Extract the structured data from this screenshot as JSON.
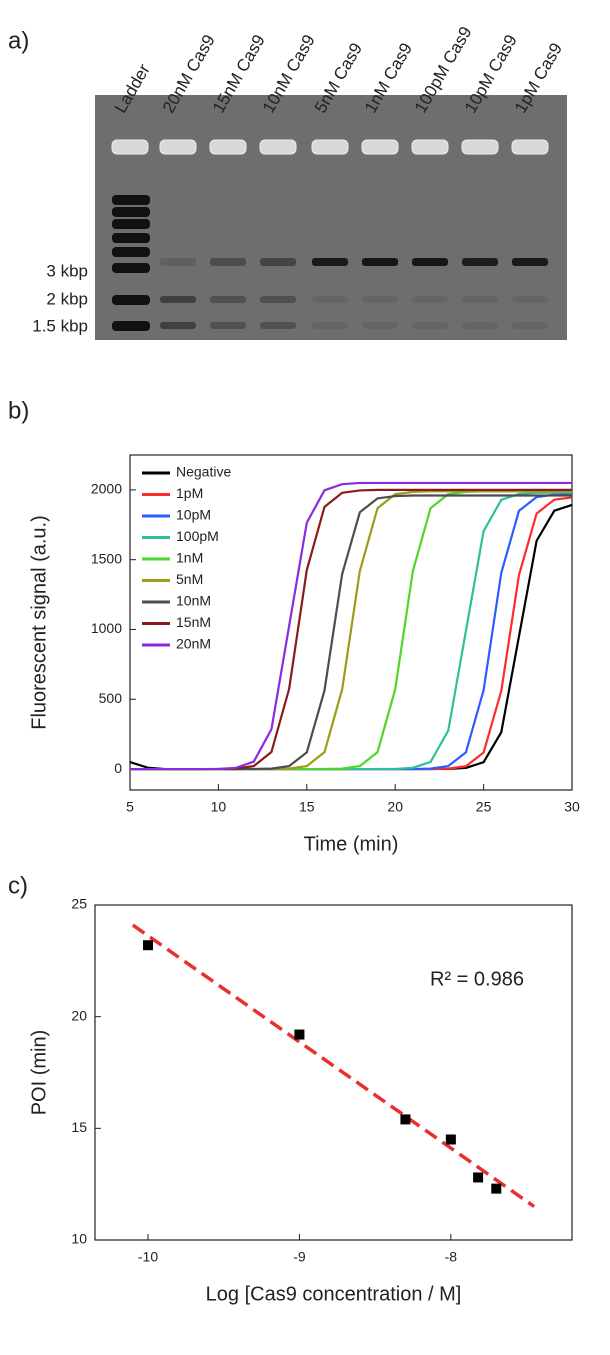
{
  "gel": {
    "panel_label": "a)",
    "lanes": [
      "Ladder",
      "20nM Cas9",
      "15nM Cas9",
      "10nM Cas9",
      "5nM Cas9",
      "1nM Cas9",
      "100pM Cas9",
      "10pM Cas9",
      "1pM Cas9"
    ],
    "size_markers": [
      "3 kbp",
      "2 kbp",
      "1.5 kbp"
    ]
  },
  "chart_data": [
    {
      "type": "line",
      "panel_label": "b)",
      "xlabel": "Time (min)",
      "ylabel": "Fluorescent signal (a.u.)",
      "xlim": [
        5,
        30
      ],
      "xticks": [
        5,
        10,
        15,
        20,
        25,
        30
      ],
      "ylim": [
        -150,
        2250
      ],
      "yticks": [
        0,
        500,
        1000,
        1500,
        2000
      ],
      "legend": "upper left",
      "x": [
        5,
        6,
        7,
        8,
        9,
        10,
        11,
        12,
        13,
        14,
        15,
        16,
        17,
        18,
        19,
        20,
        21,
        22,
        23,
        24,
        25,
        26,
        27,
        28,
        29,
        30
      ],
      "series": [
        {
          "name": "Negative",
          "color": "#000000",
          "values": [
            50,
            10,
            0,
            0,
            0,
            0,
            0,
            0,
            0,
            0,
            0,
            0,
            0,
            0,
            0,
            0,
            0,
            0,
            1,
            8,
            49,
            264,
            950,
            1636,
            1851,
            1892
          ]
        },
        {
          "name": "1pM",
          "color": "#ff2b2b",
          "values": [
            0,
            0,
            0,
            0,
            0,
            0,
            0,
            0,
            0,
            0,
            0,
            0,
            0,
            0,
            0,
            0,
            0,
            0,
            3,
            20,
            119,
            560,
            1390,
            1831,
            1930,
            1946
          ]
        },
        {
          "name": "10pM",
          "color": "#2b5cff",
          "values": [
            0,
            0,
            0,
            0,
            0,
            0,
            0,
            0,
            0,
            0,
            0,
            0,
            0,
            0,
            0,
            0,
            0,
            3,
            21,
            120,
            565,
            1405,
            1850,
            1949,
            1966,
            1970
          ]
        },
        {
          "name": "100pM",
          "color": "#2fbf9c",
          "values": [
            0,
            0,
            0,
            0,
            0,
            0,
            0,
            0,
            0,
            0,
            0,
            0,
            0,
            0,
            0,
            1,
            9,
            51,
            275,
            990,
            1705,
            1929,
            1971,
            1979,
            1980,
            1980
          ]
        },
        {
          "name": "1nM",
          "color": "#4fd62a",
          "values": [
            0,
            0,
            0,
            0,
            0,
            0,
            0,
            0,
            0,
            0,
            0,
            1,
            3,
            21,
            121,
            571,
            1419,
            1869,
            1969,
            1986,
            1990,
            1990,
            1990,
            1990,
            1990,
            1990
          ]
        },
        {
          "name": "5nM",
          "color": "#9c9c1a",
          "values": [
            0,
            0,
            0,
            0,
            0,
            0,
            0,
            0,
            1,
            3,
            21,
            121,
            571,
            1419,
            1869,
            1969,
            1986,
            1990,
            1990,
            1990,
            1990,
            1990,
            1990,
            1990,
            1990,
            1990
          ]
        },
        {
          "name": "10nM",
          "color": "#4d4d4d",
          "values": [
            0,
            0,
            0,
            0,
            0,
            0,
            0,
            1,
            3,
            21,
            120,
            563,
            1397,
            1840,
            1939,
            1956,
            1960,
            1960,
            1960,
            1960,
            1960,
            1960,
            1960,
            1960,
            1960,
            1960
          ]
        },
        {
          "name": "15nM",
          "color": "#8b1a1a",
          "values": [
            0,
            0,
            0,
            0,
            0,
            1,
            3,
            21,
            122,
            574,
            1426,
            1878,
            1979,
            1996,
            2000,
            2000,
            2000,
            2000,
            2000,
            2000,
            2000,
            2000,
            2000,
            2000,
            2000,
            2000
          ]
        },
        {
          "name": "20nM",
          "color": "#8a2be2",
          "values": [
            0,
            0,
            0,
            0,
            0,
            1,
            9,
            53,
            285,
            1025,
            1765,
            1997,
            2041,
            2050,
            2050,
            2050,
            2050,
            2050,
            2050,
            2050,
            2050,
            2050,
            2050,
            2050,
            2050,
            2050
          ]
        }
      ]
    },
    {
      "type": "scatter",
      "panel_label": "c)",
      "xlabel": "Log [Cas9 concentration / M]",
      "ylabel": "POI (min)",
      "xlim": [
        -10.35,
        -7.2
      ],
      "xticks": [
        -10,
        -9,
        -8
      ],
      "ylim": [
        10,
        25
      ],
      "yticks": [
        10,
        15,
        20,
        25
      ],
      "annotation": "R² = 0.986",
      "color": "#000000",
      "x": [
        -10,
        -9,
        -8.3,
        -8,
        -7.82,
        -7.7
      ],
      "values": [
        23.2,
        19.2,
        15.4,
        14.5,
        12.8,
        12.3
      ],
      "fit_line": {
        "color": "#e8312f",
        "x": [
          -10.1,
          -7.45
        ],
        "values": [
          24.1,
          11.5
        ]
      }
    }
  ]
}
